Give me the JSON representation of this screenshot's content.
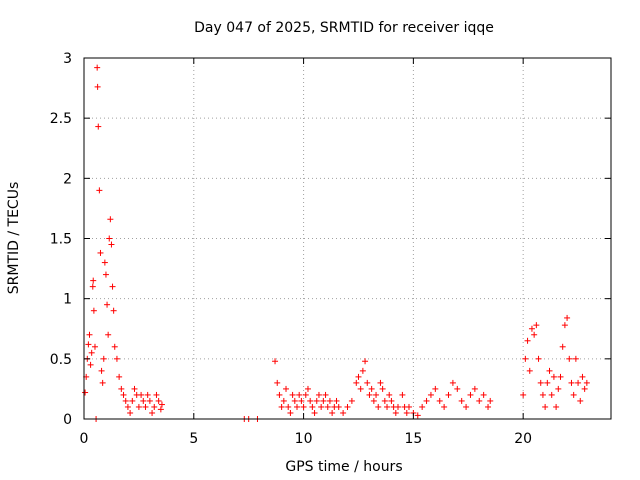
{
  "chart_data": {
    "type": "scatter",
    "title": "Day 047 of 2025, SRMTID for receiver iqqe",
    "xlabel": "GPS time / hours",
    "ylabel": "SRMTID / TECUs",
    "xlim": [
      0,
      24
    ],
    "ylim": [
      0,
      3
    ],
    "xticks": [
      0,
      5,
      10,
      15,
      20
    ],
    "xtick_labels": [
      "0",
      "5",
      "10",
      "15",
      "20"
    ],
    "yticks": [
      0,
      0.5,
      1,
      1.5,
      2,
      2.5,
      3
    ],
    "ytick_labels": [
      "0",
      "0.5",
      "1",
      "1.5",
      "2",
      "2.5",
      "3"
    ],
    "grid": true,
    "marker": "plus",
    "color": "#ff0000",
    "series": [
      {
        "name": "SRMTID",
        "points": [
          [
            0.05,
            0.22
          ],
          [
            0.1,
            0.35
          ],
          [
            0.15,
            0.5
          ],
          [
            0.2,
            0.62
          ],
          [
            0.25,
            0.7
          ],
          [
            0.3,
            0.45
          ],
          [
            0.35,
            0.55
          ],
          [
            0.4,
            1.1
          ],
          [
            0.42,
            1.15
          ],
          [
            0.45,
            0.9
          ],
          [
            0.5,
            0.6
          ],
          [
            0.55,
            0.0
          ],
          [
            0.6,
            2.92
          ],
          [
            0.62,
            2.76
          ],
          [
            0.65,
            2.43
          ],
          [
            0.7,
            1.9
          ],
          [
            0.75,
            1.38
          ],
          [
            0.8,
            0.4
          ],
          [
            0.85,
            0.3
          ],
          [
            0.9,
            0.5
          ],
          [
            0.95,
            1.3
          ],
          [
            1.0,
            1.2
          ],
          [
            1.05,
            0.95
          ],
          [
            1.1,
            0.7
          ],
          [
            1.15,
            1.5
          ],
          [
            1.2,
            1.66
          ],
          [
            1.25,
            1.45
          ],
          [
            1.3,
            1.1
          ],
          [
            1.35,
            0.9
          ],
          [
            1.4,
            0.6
          ],
          [
            1.5,
            0.5
          ],
          [
            1.6,
            0.35
          ],
          [
            1.7,
            0.25
          ],
          [
            1.8,
            0.2
          ],
          [
            1.9,
            0.15
          ],
          [
            2.0,
            0.1
          ],
          [
            2.1,
            0.05
          ],
          [
            2.2,
            0.15
          ],
          [
            2.3,
            0.25
          ],
          [
            2.4,
            0.2
          ],
          [
            2.5,
            0.1
          ],
          [
            2.6,
            0.2
          ],
          [
            2.7,
            0.15
          ],
          [
            2.8,
            0.1
          ],
          [
            2.9,
            0.2
          ],
          [
            3.0,
            0.15
          ],
          [
            3.1,
            0.05
          ],
          [
            3.2,
            0.1
          ],
          [
            3.3,
            0.2
          ],
          [
            3.4,
            0.15
          ],
          [
            3.5,
            0.08
          ],
          [
            3.55,
            0.12
          ],
          [
            7.3,
            0.0
          ],
          [
            7.5,
            0.0
          ],
          [
            7.9,
            0.0
          ],
          [
            8.7,
            0.48
          ],
          [
            8.8,
            0.3
          ],
          [
            8.9,
            0.2
          ],
          [
            9.0,
            0.1
          ],
          [
            9.1,
            0.15
          ],
          [
            9.2,
            0.25
          ],
          [
            9.3,
            0.1
          ],
          [
            9.4,
            0.05
          ],
          [
            9.5,
            0.2
          ],
          [
            9.6,
            0.15
          ],
          [
            9.7,
            0.1
          ],
          [
            9.8,
            0.2
          ],
          [
            9.9,
            0.15
          ],
          [
            10.0,
            0.1
          ],
          [
            10.1,
            0.2
          ],
          [
            10.2,
            0.25
          ],
          [
            10.3,
            0.15
          ],
          [
            10.4,
            0.1
          ],
          [
            10.5,
            0.05
          ],
          [
            10.6,
            0.15
          ],
          [
            10.7,
            0.2
          ],
          [
            10.8,
            0.1
          ],
          [
            10.9,
            0.15
          ],
          [
            11.0,
            0.2
          ],
          [
            11.1,
            0.1
          ],
          [
            11.2,
            0.15
          ],
          [
            11.3,
            0.05
          ],
          [
            11.4,
            0.1
          ],
          [
            11.5,
            0.15
          ],
          [
            11.6,
            0.1
          ],
          [
            11.8,
            0.05
          ],
          [
            12.0,
            0.1
          ],
          [
            12.2,
            0.15
          ],
          [
            12.4,
            0.3
          ],
          [
            12.5,
            0.35
          ],
          [
            12.6,
            0.25
          ],
          [
            12.7,
            0.4
          ],
          [
            12.8,
            0.48
          ],
          [
            12.9,
            0.3
          ],
          [
            13.0,
            0.2
          ],
          [
            13.1,
            0.25
          ],
          [
            13.2,
            0.15
          ],
          [
            13.3,
            0.2
          ],
          [
            13.4,
            0.1
          ],
          [
            13.5,
            0.3
          ],
          [
            13.6,
            0.25
          ],
          [
            13.7,
            0.15
          ],
          [
            13.8,
            0.1
          ],
          [
            13.9,
            0.2
          ],
          [
            14.0,
            0.15
          ],
          [
            14.1,
            0.1
          ],
          [
            14.2,
            0.05
          ],
          [
            14.3,
            0.1
          ],
          [
            14.5,
            0.2
          ],
          [
            14.6,
            0.1
          ],
          [
            14.7,
            0.05
          ],
          [
            14.8,
            0.1
          ],
          [
            15.0,
            0.05
          ],
          [
            15.2,
            0.03
          ],
          [
            15.4,
            0.1
          ],
          [
            15.6,
            0.15
          ],
          [
            15.8,
            0.2
          ],
          [
            16.0,
            0.25
          ],
          [
            16.2,
            0.15
          ],
          [
            16.4,
            0.1
          ],
          [
            16.6,
            0.2
          ],
          [
            16.8,
            0.3
          ],
          [
            17.0,
            0.25
          ],
          [
            17.2,
            0.15
          ],
          [
            17.4,
            0.1
          ],
          [
            17.6,
            0.2
          ],
          [
            17.8,
            0.25
          ],
          [
            18.0,
            0.15
          ],
          [
            18.2,
            0.2
          ],
          [
            18.4,
            0.1
          ],
          [
            18.5,
            0.15
          ],
          [
            20.0,
            0.2
          ],
          [
            20.1,
            0.5
          ],
          [
            20.2,
            0.65
          ],
          [
            20.3,
            0.4
          ],
          [
            20.4,
            0.75
          ],
          [
            20.5,
            0.7
          ],
          [
            20.6,
            0.78
          ],
          [
            20.7,
            0.5
          ],
          [
            20.8,
            0.3
          ],
          [
            20.9,
            0.2
          ],
          [
            21.0,
            0.1
          ],
          [
            21.1,
            0.3
          ],
          [
            21.2,
            0.4
          ],
          [
            21.3,
            0.2
          ],
          [
            21.4,
            0.35
          ],
          [
            21.5,
            0.1
          ],
          [
            21.6,
            0.25
          ],
          [
            21.7,
            0.35
          ],
          [
            21.8,
            0.6
          ],
          [
            21.9,
            0.78
          ],
          [
            22.0,
            0.84
          ],
          [
            22.1,
            0.5
          ],
          [
            22.2,
            0.3
          ],
          [
            22.3,
            0.2
          ],
          [
            22.4,
            0.5
          ],
          [
            22.5,
            0.3
          ],
          [
            22.6,
            0.15
          ],
          [
            22.7,
            0.35
          ],
          [
            22.8,
            0.25
          ],
          [
            22.9,
            0.3
          ]
        ]
      }
    ]
  }
}
